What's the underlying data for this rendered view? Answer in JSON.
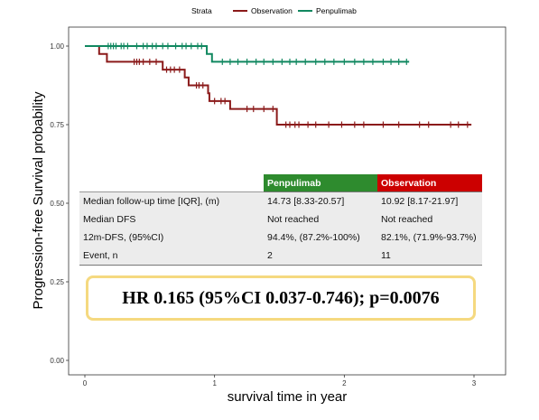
{
  "chart_data": {
    "type": "line",
    "subtype": "kaplan-meier",
    "xlabel": "survival time in year",
    "ylabel": "Progression-free Survival probability",
    "xlim": [
      0,
      3
    ],
    "ylim": [
      0,
      1
    ],
    "x_ticks": [
      "0",
      "1",
      "2",
      "3"
    ],
    "y_ticks": [
      "0.00",
      "0.25",
      "0.50",
      "0.75",
      "1.00"
    ],
    "grid": false,
    "legend": {
      "title": "Strata",
      "placement": "top"
    },
    "series": [
      {
        "name": "Observation",
        "color": "#8b1a1a",
        "steps": [
          [
            0,
            1.0
          ],
          [
            0.11,
            0.975
          ],
          [
            0.17,
            0.95
          ],
          [
            0.6,
            0.925
          ],
          [
            0.77,
            0.9
          ],
          [
            0.8,
            0.875
          ],
          [
            0.95,
            0.85
          ],
          [
            0.96,
            0.825
          ],
          [
            1.12,
            0.8
          ],
          [
            1.48,
            0.75
          ],
          [
            2.98,
            0.75
          ]
        ],
        "censors": [
          0.38,
          0.4,
          0.42,
          0.45,
          0.5,
          0.55,
          0.63,
          0.66,
          0.69,
          0.73,
          0.86,
          0.88,
          0.91,
          1.0,
          1.05,
          1.08,
          1.25,
          1.3,
          1.38,
          1.45,
          1.55,
          1.58,
          1.62,
          1.65,
          1.72,
          1.78,
          1.88,
          1.98,
          2.08,
          2.15,
          2.3,
          2.42,
          2.58,
          2.65,
          2.82,
          2.88,
          2.95
        ]
      },
      {
        "name": "Penpulimab",
        "color": "#118860",
        "steps": [
          [
            0,
            1.0
          ],
          [
            0.94,
            0.975
          ],
          [
            0.98,
            0.95
          ],
          [
            2.5,
            0.95
          ]
        ],
        "censors": [
          0.18,
          0.2,
          0.22,
          0.24,
          0.28,
          0.3,
          0.33,
          0.4,
          0.45,
          0.48,
          0.52,
          0.55,
          0.6,
          0.64,
          0.7,
          0.75,
          0.78,
          0.82,
          0.87,
          0.9,
          1.06,
          1.12,
          1.18,
          1.25,
          1.32,
          1.38,
          1.45,
          1.52,
          1.58,
          1.63,
          1.7,
          1.78,
          1.85,
          1.92,
          2.0,
          2.08,
          2.15,
          2.22,
          2.3,
          2.36,
          2.42,
          2.48
        ]
      }
    ]
  },
  "table": {
    "headers": [
      "",
      "Penpulimab",
      "Observation"
    ],
    "rows": [
      [
        "Median follow-up time [IQR], (m)",
        "14.73 [8.33-20.57]",
        "10.92 [8.17-21.97]"
      ],
      [
        "Median DFS",
        "Not reached",
        "Not reached"
      ],
      [
        "12m-DFS, (95%CI)",
        "94.4%, (87.2%-100%)",
        "82.1%, (71.9%-93.7%)"
      ],
      [
        "Event, n",
        "2",
        "11"
      ]
    ]
  },
  "hr_text": "HR 0.165 (95%CI 0.037-0.746); p=0.0076"
}
